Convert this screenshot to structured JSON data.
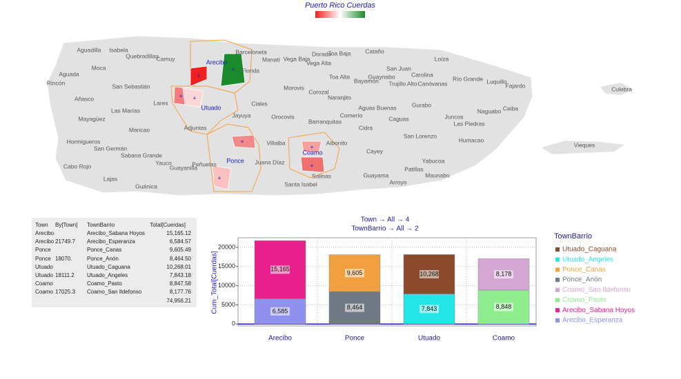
{
  "map": {
    "title": "Puerto Rico Cuerdas",
    "town_labels": [
      "Aguadilla",
      "Isabela",
      "Quebradillas",
      "Camuy",
      "Barceloneta",
      "Manatí",
      "Vega Baja",
      "Dorado",
      "Toa Baja",
      "Cataño",
      "Vega Alta",
      "Aguada",
      "Moca",
      "Rincón",
      "San Sebastián",
      "Florida",
      "Toa Alta",
      "Guaynabo",
      "San Juan",
      "Carolina",
      "Loíza",
      "Bayamón",
      "Trujillo Alto",
      "Canóvanas",
      "Río Grande",
      "Luquillo",
      "Fajardo",
      "Culebra",
      "Morovis",
      "Corozal",
      "Naranjito",
      "Añasco",
      "Lares",
      "Ciales",
      "Aguas Buenas",
      "Gurabo",
      "Ceiba",
      "Las Marías",
      "Mayagüez",
      "Jayuya",
      "Orocovis",
      "Comerío",
      "Caguas",
      "Naguabo",
      "Juncos",
      "Las Piedras",
      "Barranquitas",
      "Maricao",
      "Adjuntas",
      "Cidra",
      "Hormigueros",
      "San Lorenzo",
      "Humacao",
      "Vieques",
      "San Germán",
      "Villalba",
      "Aibonito",
      "Sabana Grande",
      "Cayey",
      "Yauco",
      "Peñuelas",
      "Guayanilla",
      "Juana Díaz",
      "Yabucoa",
      "Cabo Rojo",
      "Patillas",
      "Maunabo",
      "Lajas",
      "Salinas",
      "Guayama",
      "Arroyo",
      "Santa Isabel",
      "Guánica"
    ],
    "highlighted_towns": [
      "Arecibo",
      "Utuado",
      "Ponce",
      "Coamo"
    ]
  },
  "table": {
    "header": [
      "Town",
      "By[Town]",
      "TownBarrio",
      "Total[Cuerdas]"
    ],
    "rows": [
      {
        "town": "Arecibo",
        "barrio": "Arecibo_Sabana Hoyos",
        "total": "15,165.12"
      },
      {
        "town": "Arecibo",
        "by_town": "21749.7",
        "barrio": "Arecibo_Esperanza",
        "total": "6,584.57"
      },
      {
        "town": "Ponce",
        "barrio": "Ponce_Canas",
        "total": "9,605.49"
      },
      {
        "town": "Ponce",
        "by_town": "18070.",
        "barrio": "Ponce_Anón",
        "total": "8,464.50"
      },
      {
        "town": "Utuado",
        "barrio": "Utuado_Caguana",
        "total": "10,268.01"
      },
      {
        "town": "Utuado",
        "by_town": "18111.2",
        "barrio": "Utuado_Angeles",
        "total": "7,843.18"
      },
      {
        "town": "Coamo",
        "barrio": "Coamo_Pasto",
        "total": "8,847.58"
      },
      {
        "town": "Coamo",
        "by_town": "17025.3",
        "barrio": "Coamo_San Ildefonso",
        "total": "8,177.76"
      }
    ],
    "grand_total": "74,956.21"
  },
  "chart_data": {
    "type": "stacked_bar",
    "title": "Town → All → 4",
    "subtitle": "TownBarrio → All → 2",
    "y_label": "Cum_Total[Cuerdas]",
    "legend_title": "TownBarrio",
    "categories": [
      "Arecibo",
      "Ponce",
      "Utuado",
      "Coamo"
    ],
    "ylim": [
      -500,
      22500
    ],
    "yticks": [
      0,
      5000,
      10000,
      15000,
      20000
    ],
    "grid": true,
    "series": [
      {
        "name": "Utuado_Caguana",
        "color": "#8b4a2b",
        "values": [
          null,
          null,
          10268.01,
          null
        ],
        "value_labels": [
          null,
          null,
          "10,268",
          null
        ]
      },
      {
        "name": "Utuado_Angeles",
        "color": "#22e6e6",
        "values": [
          null,
          null,
          7843.18,
          null
        ],
        "value_labels": [
          null,
          null,
          "7,843",
          null
        ]
      },
      {
        "name": "Ponce_Canas",
        "color": "#f0a040",
        "values": [
          null,
          9605.49,
          null,
          null
        ],
        "value_labels": [
          null,
          "9,605",
          null,
          null
        ]
      },
      {
        "name": "Ponce_Anón",
        "color": "#707a84",
        "values": [
          null,
          8464.5,
          null,
          null
        ],
        "value_labels": [
          null,
          "8,464",
          null,
          null
        ]
      },
      {
        "name": "Coamo_San Ildefonso",
        "color": "#d4a6d4",
        "values": [
          null,
          null,
          null,
          8177.76
        ],
        "value_labels": [
          null,
          null,
          null,
          "8,178"
        ]
      },
      {
        "name": "Coamo_Pasto",
        "color": "#8eee8e",
        "values": [
          null,
          null,
          null,
          8847.58
        ],
        "value_labels": [
          null,
          null,
          null,
          "8,848"
        ]
      },
      {
        "name": "Arecibo_Sabana Hoyos",
        "color": "#e8208c",
        "values": [
          15165.12,
          null,
          null,
          null
        ],
        "value_labels": [
          "15,165",
          null,
          null,
          null
        ]
      },
      {
        "name": "Arecibo_Esperanza",
        "color": "#9090ee",
        "values": [
          6584.57,
          null,
          null,
          null
        ],
        "value_labels": [
          "6,585",
          null,
          null,
          null
        ]
      }
    ]
  }
}
